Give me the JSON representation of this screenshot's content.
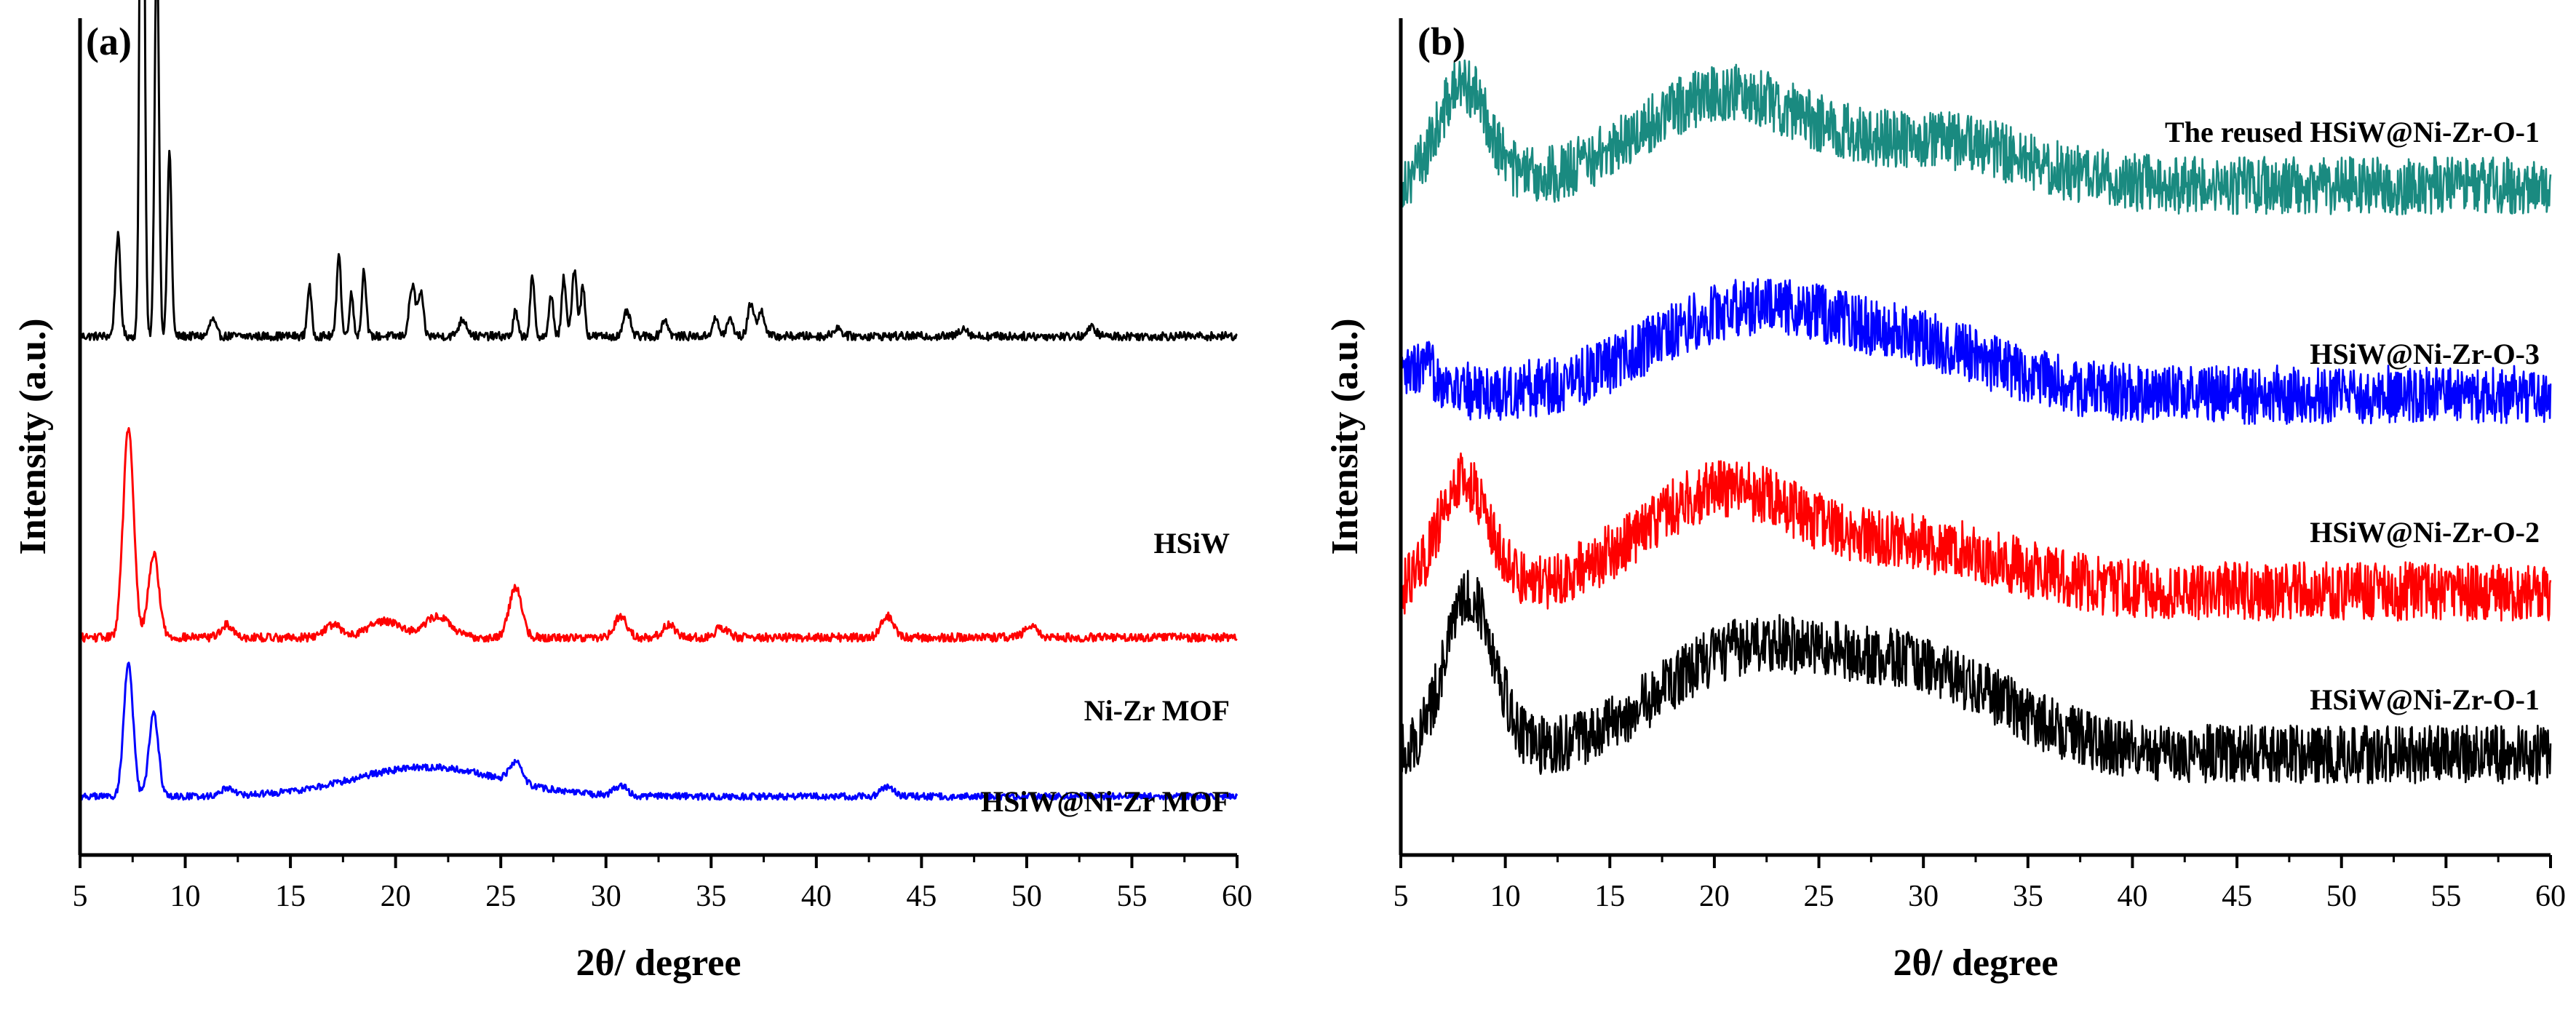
{
  "chart_data": [
    {
      "panel_label": "(a)",
      "type": "line",
      "xlabel": "2θ/ degree",
      "ylabel": "Intensity (a.u.)",
      "xlim": [
        5,
        60
      ],
      "x_ticks": [
        5,
        10,
        15,
        20,
        25,
        30,
        35,
        40,
        45,
        50,
        55,
        60
      ],
      "y_ticks_shown": false,
      "grid": false,
      "series": [
        {
          "name": "HSiW",
          "label": "HSiW",
          "color": "#000000",
          "baseline": 0.62,
          "noise": 0.005,
          "peaks": [
            {
              "x": 6.8,
              "h": 0.12,
              "w": 0.12
            },
            {
              "x": 7.95,
              "h": 0.98,
              "w": 0.1
            },
            {
              "x": 8.65,
              "h": 0.48,
              "w": 0.1
            },
            {
              "x": 9.25,
              "h": 0.22,
              "w": 0.1
            },
            {
              "x": 11.3,
              "h": 0.02,
              "w": 0.15
            },
            {
              "x": 15.9,
              "h": 0.06,
              "w": 0.1
            },
            {
              "x": 17.3,
              "h": 0.1,
              "w": 0.1
            },
            {
              "x": 17.9,
              "h": 0.05,
              "w": 0.1
            },
            {
              "x": 18.5,
              "h": 0.08,
              "w": 0.1
            },
            {
              "x": 20.8,
              "h": 0.06,
              "w": 0.15
            },
            {
              "x": 21.2,
              "h": 0.05,
              "w": 0.12
            },
            {
              "x": 23.2,
              "h": 0.02,
              "w": 0.2
            },
            {
              "x": 25.7,
              "h": 0.03,
              "w": 0.1
            },
            {
              "x": 26.5,
              "h": 0.07,
              "w": 0.1
            },
            {
              "x": 27.4,
              "h": 0.05,
              "w": 0.1
            },
            {
              "x": 28.0,
              "h": 0.07,
              "w": 0.1
            },
            {
              "x": 28.5,
              "h": 0.08,
              "w": 0.12
            },
            {
              "x": 28.9,
              "h": 0.06,
              "w": 0.1
            },
            {
              "x": 31.0,
              "h": 0.03,
              "w": 0.15
            },
            {
              "x": 32.8,
              "h": 0.02,
              "w": 0.15
            },
            {
              "x": 35.2,
              "h": 0.02,
              "w": 0.15
            },
            {
              "x": 35.9,
              "h": 0.02,
              "w": 0.15
            },
            {
              "x": 36.9,
              "h": 0.04,
              "w": 0.15
            },
            {
              "x": 37.4,
              "h": 0.03,
              "w": 0.15
            },
            {
              "x": 41.0,
              "h": 0.01,
              "w": 0.2
            },
            {
              "x": 47.0,
              "h": 0.01,
              "w": 0.2
            },
            {
              "x": 53.1,
              "h": 0.01,
              "w": 0.2
            }
          ]
        },
        {
          "name": "Ni-Zr MOF",
          "label": "Ni-Zr MOF",
          "color": "#ff0000",
          "baseline": 0.26,
          "noise": 0.005,
          "peaks": [
            {
              "x": 7.3,
              "h": 0.25,
              "w": 0.25
            },
            {
              "x": 8.5,
              "h": 0.1,
              "w": 0.25
            },
            {
              "x": 12.0,
              "h": 0.015,
              "w": 0.3
            },
            {
              "x": 17.0,
              "h": 0.015,
              "w": 0.4
            },
            {
              "x": 19.5,
              "h": 0.02,
              "w": 0.8
            },
            {
              "x": 22.0,
              "h": 0.025,
              "w": 0.6
            },
            {
              "x": 25.7,
              "h": 0.06,
              "w": 0.3
            },
            {
              "x": 30.7,
              "h": 0.025,
              "w": 0.3
            },
            {
              "x": 33.0,
              "h": 0.015,
              "w": 0.3
            },
            {
              "x": 35.5,
              "h": 0.012,
              "w": 0.3
            },
            {
              "x": 43.4,
              "h": 0.025,
              "w": 0.3
            },
            {
              "x": 50.2,
              "h": 0.015,
              "w": 0.3
            }
          ]
        },
        {
          "name": "HSiW@Ni-Zr MOF",
          "label": "HSiW@Ni-Zr MOF",
          "color": "#0000ff",
          "baseline": 0.07,
          "noise": 0.004,
          "peaks": [
            {
              "x": 7.3,
              "h": 0.16,
              "w": 0.22
            },
            {
              "x": 8.5,
              "h": 0.1,
              "w": 0.22
            },
            {
              "x": 12.0,
              "h": 0.01,
              "w": 0.3
            },
            {
              "x": 21.5,
              "h": 0.035,
              "w": 3.5
            },
            {
              "x": 25.7,
              "h": 0.025,
              "w": 0.3
            },
            {
              "x": 30.7,
              "h": 0.012,
              "w": 0.3
            },
            {
              "x": 43.4,
              "h": 0.012,
              "w": 0.3
            }
          ]
        }
      ]
    },
    {
      "panel_label": "(b)",
      "type": "line",
      "xlabel": "2θ/ degree",
      "ylabel": "Intensity (a.u.)",
      "xlim": [
        5,
        60
      ],
      "x_ticks": [
        5,
        10,
        15,
        20,
        25,
        30,
        35,
        40,
        45,
        50,
        55,
        60
      ],
      "y_ticks_shown": false,
      "grid": false,
      "series": [
        {
          "name": "The reused HSiW@Ni-Zr-O-1",
          "label": "The reused HSiW@Ni-Zr-O-1",
          "color": "#1a8a80",
          "baseline": 0.8,
          "noise": 0.035,
          "peaks": [
            {
              "x": 8.0,
              "h": 0.12,
              "w": 1.2
            },
            {
              "x": 20.5,
              "h": 0.11,
              "w": 4.0
            },
            {
              "x": 31.0,
              "h": 0.05,
              "w": 4.0
            }
          ]
        },
        {
          "name": "HSiW@Ni-Zr-O-3",
          "label": "HSiW@Ni-Zr-O-3",
          "color": "#0000ff",
          "baseline": 0.55,
          "noise": 0.035,
          "peaks": [
            {
              "x": 6.0,
              "h": 0.03,
              "w": 1.0
            },
            {
              "x": 21.5,
              "h": 0.1,
              "w": 4.5
            },
            {
              "x": 30.0,
              "h": 0.05,
              "w": 4.0
            }
          ]
        },
        {
          "name": "HSiW@Ni-Zr-O-2",
          "label": "HSiW@Ni-Zr-O-2",
          "color": "#ff0000",
          "baseline": 0.315,
          "noise": 0.035,
          "peaks": [
            {
              "x": 8.0,
              "h": 0.13,
              "w": 1.2
            },
            {
              "x": 20.5,
              "h": 0.12,
              "w": 4.0
            },
            {
              "x": 30.5,
              "h": 0.05,
              "w": 4.0
            }
          ]
        },
        {
          "name": "HSiW@Ni-Zr-O-1",
          "label": "HSiW@Ni-Zr-O-1",
          "color": "#000000",
          "baseline": 0.12,
          "noise": 0.035,
          "peaks": [
            {
              "x": 8.3,
              "h": 0.19,
              "w": 1.2
            },
            {
              "x": 21.0,
              "h": 0.11,
              "w": 4.0
            },
            {
              "x": 29.5,
              "h": 0.1,
              "w": 4.5
            }
          ]
        }
      ]
    }
  ]
}
